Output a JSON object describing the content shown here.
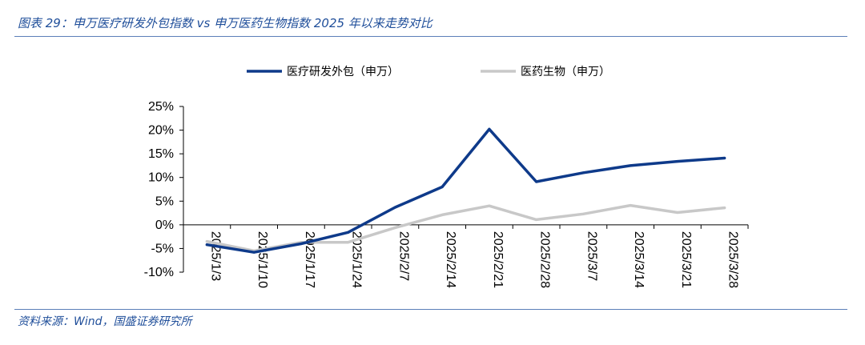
{
  "header": {
    "title": "图表 29：申万医疗研发外包指数 vs 申万医药生物指数 2025 年以来走势对比"
  },
  "footer": {
    "source": "资料来源：Wind，国盛证券研究所"
  },
  "colors": {
    "accent": "#1f4e9a",
    "rule": "#5b7fb8"
  },
  "chart_data": {
    "type": "line",
    "title": "",
    "xlabel": "",
    "ylabel": "",
    "categories": [
      "2025/1/3",
      "2025/1/10",
      "2025/1/17",
      "2025/1/24",
      "2025/2/7",
      "2025/2/14",
      "2025/2/21",
      "2025/2/28",
      "2025/3/7",
      "2025/3/14",
      "2025/3/21",
      "2025/3/28"
    ],
    "ylim": [
      -10,
      25
    ],
    "yticks": [
      "25%",
      "20%",
      "15%",
      "10%",
      "5%",
      "0%",
      "-5%",
      "-10%"
    ],
    "ytick_values": [
      25,
      20,
      15,
      10,
      5,
      0,
      -5,
      -10
    ],
    "legend_position": "top",
    "grid": false,
    "series": [
      {
        "name": "医疗研发外包（申万）",
        "color": "#0e3a8a",
        "values": [
          -4.2,
          -5.8,
          -4.0,
          -1.6,
          3.7,
          8.0,
          20.2,
          9.1,
          11.0,
          12.5,
          13.4,
          14.1
        ]
      },
      {
        "name": "医药生物（申万）",
        "color": "#c8c8c8",
        "values": [
          -3.5,
          -5.5,
          -3.7,
          -3.7,
          -0.6,
          2.1,
          4.0,
          1.1,
          2.3,
          4.1,
          2.6,
          3.6
        ]
      }
    ]
  }
}
